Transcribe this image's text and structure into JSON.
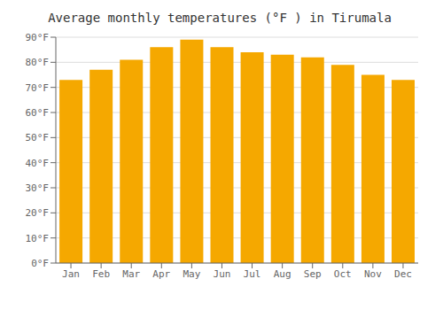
{
  "chart_data": {
    "type": "bar",
    "title": "Average monthly temperatures (°F ) in Tirumala",
    "categories": [
      "Jan",
      "Feb",
      "Mar",
      "Apr",
      "May",
      "Jun",
      "Jul",
      "Aug",
      "Sep",
      "Oct",
      "Nov",
      "Dec"
    ],
    "values": [
      73,
      77,
      81,
      86,
      89,
      86,
      84,
      83,
      82,
      79,
      75,
      73
    ],
    "color": "#F5A800",
    "ylim": [
      0,
      90
    ],
    "yticks": [
      {
        "value": 0,
        "label": "0°F"
      },
      {
        "value": 10,
        "label": "10°F"
      },
      {
        "value": 20,
        "label": "20°F"
      },
      {
        "value": 30,
        "label": "30°F"
      },
      {
        "value": 40,
        "label": "40°F"
      },
      {
        "value": 50,
        "label": "50°F"
      },
      {
        "value": 60,
        "label": "60°F"
      },
      {
        "value": 70,
        "label": "70°F"
      },
      {
        "value": 80,
        "label": "80°F"
      },
      {
        "value": 90,
        "label": "90°F"
      }
    ],
    "grid": true
  }
}
